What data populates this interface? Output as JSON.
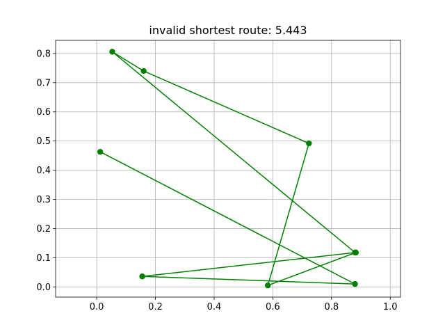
{
  "chart_data": {
    "type": "line",
    "title": "invalid shortest route: 5.443",
    "xlabel": "",
    "ylabel": "",
    "xlim": [
      -0.14,
      1.035
    ],
    "ylim": [
      -0.035,
      0.845
    ],
    "xticks": [
      0.0,
      0.2,
      0.4,
      0.6,
      0.8,
      1.0
    ],
    "xtick_labels": [
      "0.0",
      "0.2",
      "0.4",
      "0.6",
      "0.8",
      "1.0"
    ],
    "yticks": [
      0.0,
      0.1,
      0.2,
      0.3,
      0.4,
      0.5,
      0.6,
      0.7,
      0.8
    ],
    "ytick_labels": [
      "0.0",
      "0.1",
      "0.2",
      "0.3",
      "0.4",
      "0.5",
      "0.6",
      "0.7",
      "0.8"
    ],
    "grid": true,
    "legend": "none",
    "series": [
      {
        "color": "#008000",
        "marker": "circle",
        "x": [
          0.012,
          0.88,
          0.155,
          0.883,
          0.583,
          0.723,
          0.16,
          0.053,
          0.88
        ],
        "y": [
          0.463,
          0.01,
          0.036,
          0.118,
          0.005,
          0.492,
          0.74,
          0.806,
          0.118
        ]
      }
    ]
  }
}
